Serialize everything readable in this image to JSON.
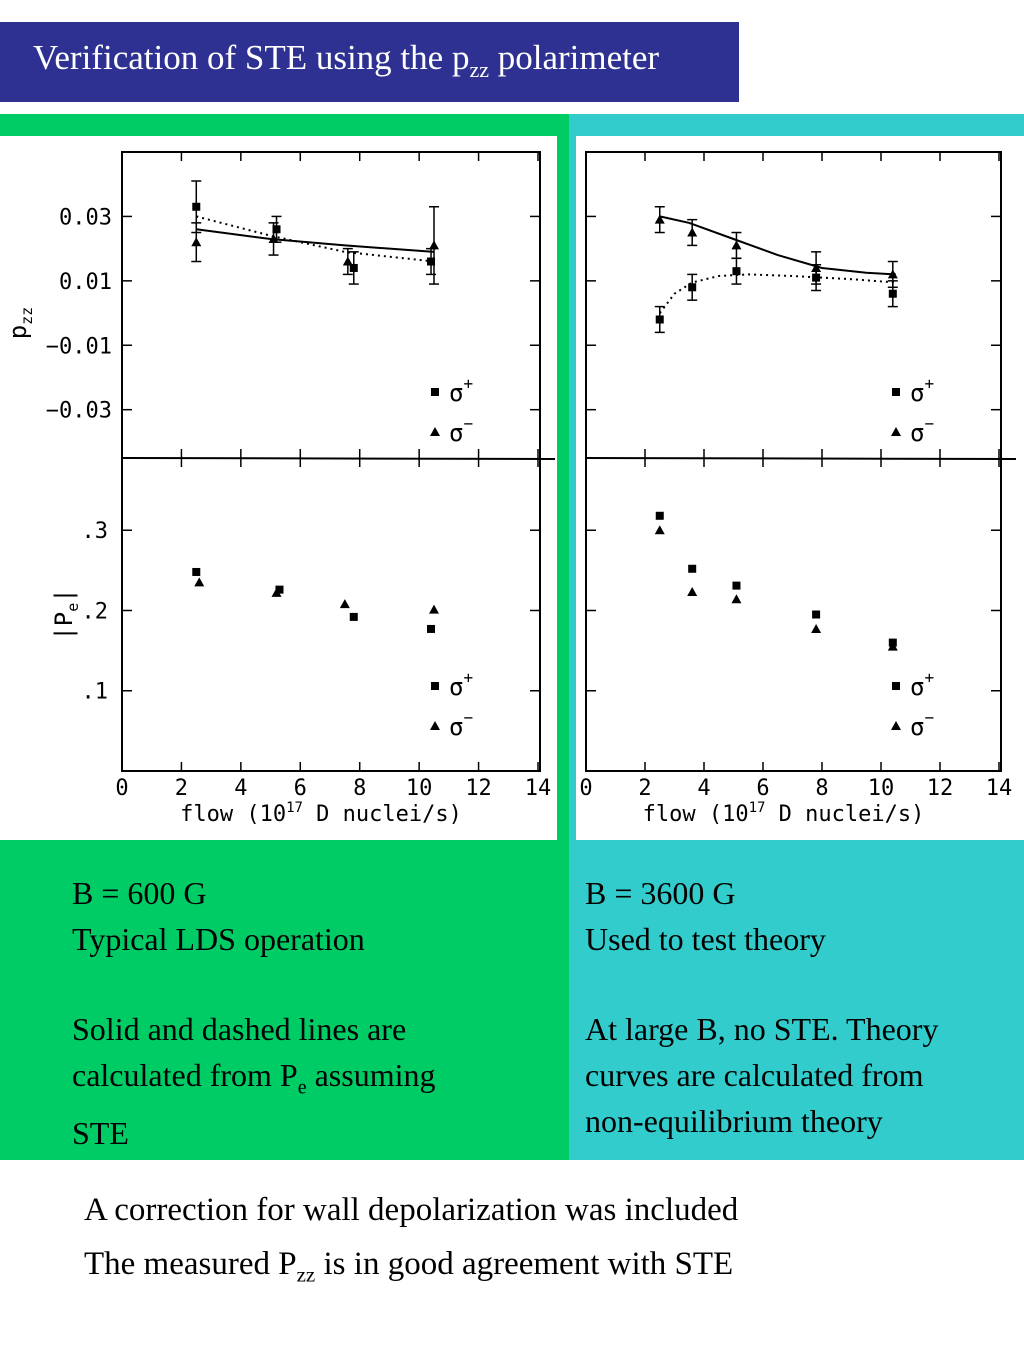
{
  "title": {
    "main": "Verification of STE using the p",
    "sub": "zz",
    "tail": " polarimeter"
  },
  "chart_data": [
    {
      "type": "scatter",
      "panel": "B = 600 G",
      "x_ticks": [
        "0",
        "2",
        "4",
        "6",
        "8",
        "10",
        "12",
        "14"
      ],
      "xlim": [
        0,
        14
      ],
      "xlabel": {
        "pre": "flow  (10",
        "sup": "17",
        "post": " D nuclei/s)"
      },
      "top": {
        "ylabel": {
          "main": "p",
          "sub": "zz"
        },
        "ylim": [
          -0.045,
          0.05
        ],
        "y_ticks": [
          {
            "v": 0.03,
            "label": "0.03"
          },
          {
            "v": 0.01,
            "label": "0.01"
          },
          {
            "v": -0.01,
            "label": "−0.01"
          },
          {
            "v": -0.03,
            "label": "−0.03"
          }
        ],
        "series": [
          {
            "name": "σ⁺",
            "marker": "square",
            "points": [
              {
                "x": 2.5,
                "y": 0.033,
                "err": 0.008
              },
              {
                "x": 5.2,
                "y": 0.026,
                "err": 0.004
              },
              {
                "x": 7.8,
                "y": 0.014,
                "err": 0.005
              },
              {
                "x": 10.4,
                "y": 0.016,
                "err": 0.004
              }
            ]
          },
          {
            "name": "σ⁻",
            "marker": "triangle",
            "points": [
              {
                "x": 2.5,
                "y": 0.022,
                "err": 0.006
              },
              {
                "x": 5.1,
                "y": 0.023,
                "err": 0.005
              },
              {
                "x": 7.6,
                "y": 0.016,
                "err": 0.004
              },
              {
                "x": 10.5,
                "y": 0.021,
                "err": 0.012
              }
            ]
          }
        ],
        "curves": [
          {
            "style": "solid",
            "points": [
              [
                2.5,
                0.026
              ],
              [
                5,
                0.023
              ],
              [
                7.5,
                0.021
              ],
              [
                10.5,
                0.019
              ]
            ]
          },
          {
            "style": "dotted",
            "points": [
              [
                2.5,
                0.03
              ],
              [
                5,
                0.024
              ],
              [
                7.5,
                0.019
              ],
              [
                10.5,
                0.016
              ]
            ]
          }
        ]
      },
      "bottom": {
        "ylabel": {
          "main": "|P",
          "sub": "e",
          "tail": "|"
        },
        "ylim": [
          0,
          0.39
        ],
        "y_ticks": [
          {
            "v": 0.3,
            "label": ".3"
          },
          {
            "v": 0.2,
            "label": ".2"
          },
          {
            "v": 0.1,
            "label": ".1"
          }
        ],
        "series": [
          {
            "name": "σ⁺",
            "marker": "square",
            "points": [
              {
                "x": 2.5,
                "y": 0.248
              },
              {
                "x": 5.3,
                "y": 0.226
              },
              {
                "x": 7.8,
                "y": 0.192
              },
              {
                "x": 10.4,
                "y": 0.177
              }
            ]
          },
          {
            "name": "σ⁻",
            "marker": "triangle",
            "points": [
              {
                "x": 2.6,
                "y": 0.235
              },
              {
                "x": 5.2,
                "y": 0.222
              },
              {
                "x": 7.5,
                "y": 0.208
              },
              {
                "x": 10.5,
                "y": 0.201
              }
            ]
          }
        ]
      },
      "legend": {
        "items": [
          {
            "base": "σ",
            "sup": "+",
            "marker": "square"
          },
          {
            "base": "σ",
            "sup": "−",
            "marker": "triangle"
          }
        ],
        "placement": "bottom-right"
      }
    },
    {
      "type": "scatter",
      "panel": "B = 3600 G",
      "x_ticks": [
        "0",
        "2",
        "4",
        "6",
        "8",
        "10",
        "12",
        "14"
      ],
      "xlim": [
        0,
        14
      ],
      "xlabel": {
        "pre": "flow  (10",
        "sup": "17",
        "post": " D nuclei/s)"
      },
      "top": {
        "ylim": [
          -0.045,
          0.05
        ],
        "series": [
          {
            "name": "σ⁺",
            "marker": "square",
            "points": [
              {
                "x": 2.5,
                "y": -0.002,
                "err": 0.004
              },
              {
                "x": 3.6,
                "y": 0.008,
                "err": 0.004
              },
              {
                "x": 5.1,
                "y": 0.013,
                "err": 0.004
              },
              {
                "x": 7.8,
                "y": 0.011,
                "err": 0.004
              },
              {
                "x": 10.4,
                "y": 0.006,
                "err": 0.004
              }
            ]
          },
          {
            "name": "σ⁻",
            "marker": "triangle",
            "points": [
              {
                "x": 2.5,
                "y": 0.029,
                "err": 0.004
              },
              {
                "x": 3.6,
                "y": 0.025,
                "err": 0.004
              },
              {
                "x": 5.1,
                "y": 0.021,
                "err": 0.004
              },
              {
                "x": 7.8,
                "y": 0.014,
                "err": 0.005
              },
              {
                "x": 10.4,
                "y": 0.012,
                "err": 0.004
              }
            ]
          }
        ],
        "curves": [
          {
            "style": "solid",
            "points": [
              [
                2.5,
                0.03
              ],
              [
                3.5,
                0.028
              ],
              [
                5,
                0.023
              ],
              [
                6.5,
                0.018
              ],
              [
                8,
                0.014
              ],
              [
                9.5,
                0.0125
              ],
              [
                10.5,
                0.012
              ]
            ]
          },
          {
            "style": "dotted",
            "points": [
              [
                2.5,
                0.0
              ],
              [
                3,
                0.006
              ],
              [
                3.6,
                0.0095
              ],
              [
                4.5,
                0.0115
              ],
              [
                5.5,
                0.012
              ],
              [
                7,
                0.0115
              ],
              [
                9,
                0.0105
              ],
              [
                10.5,
                0.0095
              ]
            ]
          }
        ]
      },
      "bottom": {
        "ylim": [
          0,
          0.39
        ],
        "series": [
          {
            "name": "σ⁺",
            "marker": "square",
            "points": [
              {
                "x": 2.5,
                "y": 0.318
              },
              {
                "x": 3.6,
                "y": 0.252
              },
              {
                "x": 5.1,
                "y": 0.231
              },
              {
                "x": 7.8,
                "y": 0.195
              },
              {
                "x": 10.4,
                "y": 0.16
              }
            ]
          },
          {
            "name": "σ⁻",
            "marker": "triangle",
            "points": [
              {
                "x": 2.5,
                "y": 0.3
              },
              {
                "x": 3.6,
                "y": 0.223
              },
              {
                "x": 5.1,
                "y": 0.214
              },
              {
                "x": 7.8,
                "y": 0.177
              },
              {
                "x": 10.4,
                "y": 0.155
              }
            ]
          }
        ]
      },
      "legend": {
        "items": [
          {
            "base": "σ",
            "sup": "+",
            "marker": "square"
          },
          {
            "base": "σ",
            "sup": "−",
            "marker": "triangle"
          }
        ],
        "placement": "bottom-right"
      }
    }
  ],
  "left_caption": {
    "line1": "B = 600 G",
    "line2": "Typical LDS operation",
    "line3": "Solid and dashed lines are",
    "line4_pre": "calculated from P",
    "line4_sub": "e",
    "line4_post": " assuming",
    "line5": "STE"
  },
  "right_caption": {
    "line1": "B = 3600 G",
    "line2": "Used to test theory",
    "line3": "At large B, no STE.  Theory",
    "line4": "curves are calculated from",
    "line5": "non-equilibrium theory"
  },
  "footer": {
    "line1": "A correction for wall depolarization was included",
    "line2_pre": "The measured P",
    "line2_sub": "zz",
    "line2_post": " is in good agreement with STE"
  },
  "colors": {
    "title_bg": "#2e3192",
    "left_bg": "#00cc66",
    "right_bg": "#33cccc"
  }
}
